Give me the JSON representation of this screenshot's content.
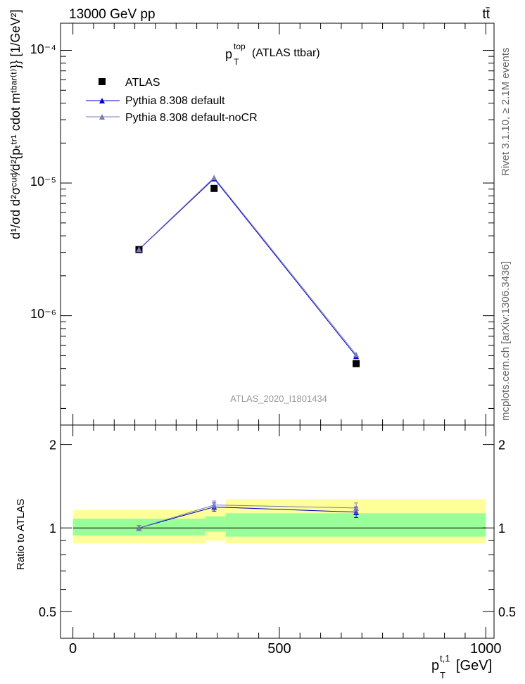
{
  "header": {
    "left": "13000 GeV pp",
    "right": "tt̄"
  },
  "side_labels": {
    "rivet": "Rivet 3.1.10, ≥ 2.1M events",
    "mcplots": "mcplots.cern.ch [arXiv:1306.3436]"
  },
  "chart_data": [
    {
      "type": "line",
      "title_main": "p",
      "title_sup": "top",
      "title_sub": "T",
      "title_rest": "(ATLAS ttbar)",
      "watermark": "ATLAS_2020_I1801434",
      "ylabel": "d¹/σd d²σᶜᵘᵈ⁄d²{pₜᵗʳ¹ cdot mᵗᵇᵃʳ⁽ᵗ⁾}} [1/GeV²]",
      "yscale": "log",
      "ylim": [
        1.5e-07,
        0.00016
      ],
      "xlim": [
        -30,
        1020
      ],
      "ytick_labels": [
        "10⁻⁴",
        "10⁻⁵",
        "10⁻⁶"
      ],
      "legend": [
        "ATLAS",
        "Pythia 8.308 default",
        "Pythia 8.308 default-noCR"
      ],
      "legend_position": "top-left",
      "series": [
        {
          "name": "ATLAS",
          "color": "#000000",
          "marker": "square",
          "x": [
            160,
            342,
            686
          ],
          "y": [
            3.15e-06,
            9.1e-06,
            4.35e-07
          ]
        },
        {
          "name": "Pythia 8.308 default",
          "color": "#0000cc",
          "marker": "triangle",
          "x": [
            160,
            342,
            686
          ],
          "y": [
            3.15e-06,
            1.08e-05,
            4.95e-07
          ]
        },
        {
          "name": "Pythia 8.308 default-noCR",
          "color": "#7a7ab8",
          "marker": "triangle",
          "x": [
            160,
            342,
            686
          ],
          "y": [
            3.17e-06,
            1.1e-05,
            5.1e-07
          ]
        }
      ]
    },
    {
      "type": "line",
      "ylabel": "Ratio to ATLAS",
      "xlabel_main": "p",
      "xlabel_sup": "t,1",
      "xlabel_sub": "T",
      "xlabel_unit": "[GeV]",
      "xlim": [
        -30,
        1020
      ],
      "ylim": [
        0.4,
        2.35
      ],
      "yscale": "log",
      "x_ticks": [
        0,
        500,
        1000
      ],
      "x_tick_labels": [
        "0",
        "500",
        "1000"
      ],
      "y_ticks": [
        0.5,
        1,
        2
      ],
      "y_tick_labels": [
        "0.5",
        "1",
        "2"
      ],
      "bands": [
        {
          "x0": 0,
          "x1": 320,
          "inner": [
            0.94,
            1.08
          ],
          "outer": [
            0.88,
            1.16
          ]
        },
        {
          "x0": 320,
          "x1": 370,
          "inner": [
            0.97,
            1.1
          ],
          "outer": [
            0.9,
            1.18
          ]
        },
        {
          "x0": 370,
          "x1": 1000,
          "inner": [
            0.93,
            1.13
          ],
          "outer": [
            0.88,
            1.27
          ]
        }
      ],
      "series": [
        {
          "name": "Pythia 8.308 default",
          "color": "#0000cc",
          "x": [
            160,
            342,
            686
          ],
          "y": [
            1.0,
            1.19,
            1.14
          ],
          "err": [
            0.02,
            0.04,
            0.05
          ]
        },
        {
          "name": "Pythia 8.308 default-noCR",
          "color": "#7a7ab8",
          "x": [
            160,
            342,
            686
          ],
          "y": [
            1.0,
            1.21,
            1.18
          ],
          "err": [
            0.02,
            0.04,
            0.05
          ]
        }
      ]
    }
  ]
}
